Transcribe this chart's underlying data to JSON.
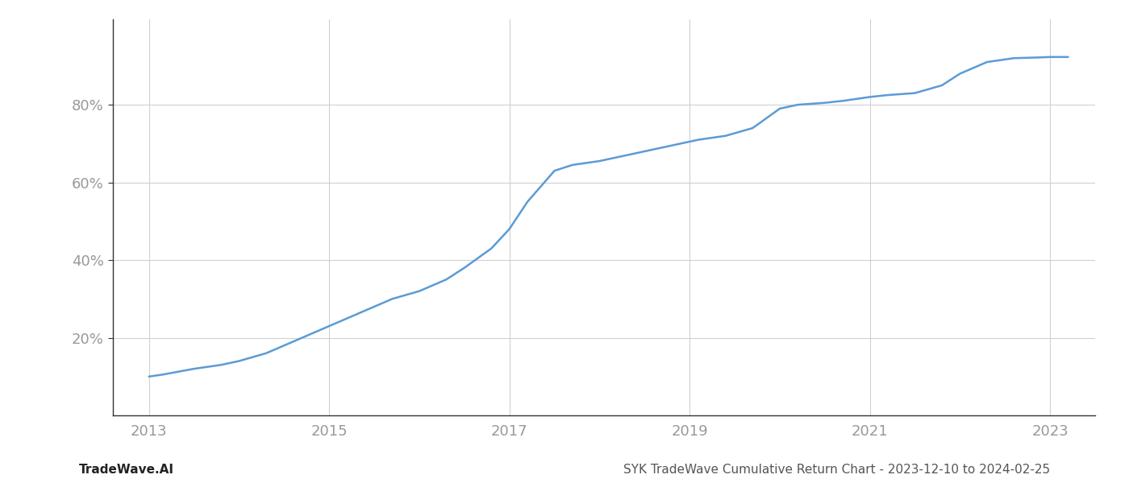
{
  "x_years": [
    2013.0,
    2013.15,
    2013.5,
    2013.8,
    2014.0,
    2014.3,
    2014.6,
    2014.9,
    2015.1,
    2015.4,
    2015.7,
    2016.0,
    2016.3,
    2016.5,
    2016.8,
    2017.0,
    2017.2,
    2017.5,
    2017.7,
    2018.0,
    2018.3,
    2018.6,
    2018.9,
    2019.1,
    2019.4,
    2019.7,
    2020.0,
    2020.2,
    2020.5,
    2020.7,
    2021.0,
    2021.2,
    2021.5,
    2021.8,
    2022.0,
    2022.3,
    2022.6,
    2022.9,
    2023.0,
    2023.2
  ],
  "y_values": [
    10,
    10.5,
    12,
    13,
    14,
    16,
    19,
    22,
    24,
    27,
    30,
    32,
    35,
    38,
    43,
    48,
    55,
    63,
    64.5,
    65.5,
    67,
    68.5,
    70,
    71,
    72,
    74,
    79,
    80,
    80.5,
    81,
    82,
    82.5,
    83,
    85,
    88,
    91,
    92,
    92.2,
    92.3,
    92.3
  ],
  "line_color": "#5b9bd5",
  "line_width": 1.8,
  "background_color": "#ffffff",
  "grid_color": "#d0d0d0",
  "ytick_labels": [
    "20%",
    "40%",
    "60%",
    "80%"
  ],
  "ytick_values": [
    20,
    40,
    60,
    80
  ],
  "xtick_labels": [
    "2013",
    "2015",
    "2017",
    "2019",
    "2021",
    "2023"
  ],
  "xtick_values": [
    2013,
    2015,
    2017,
    2019,
    2021,
    2023
  ],
  "xlim": [
    2012.6,
    2023.5
  ],
  "ylim": [
    0,
    102
  ],
  "footer_left": "TradeWave.AI",
  "footer_right": "SYK TradeWave Cumulative Return Chart - 2023-12-10 to 2024-02-25",
  "label_color": "#999999",
  "spine_color": "#333333",
  "footer_left_color": "#222222",
  "footer_right_color": "#555555"
}
